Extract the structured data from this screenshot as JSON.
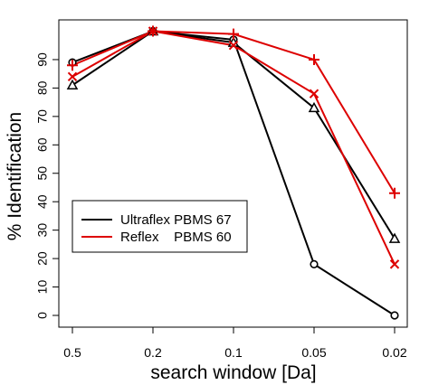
{
  "chart_data": {
    "type": "line",
    "title": "",
    "xlabel": "search window [Da]",
    "ylabel": "% Identification",
    "categories": [
      "0.5",
      "0.2",
      "0.1",
      "0.05",
      "0.02"
    ],
    "yticks": [
      0,
      10,
      20,
      30,
      40,
      50,
      60,
      70,
      80,
      90
    ],
    "ylim": [
      0,
      100
    ],
    "grid": false,
    "legend_position": "center-left",
    "legend": [
      {
        "label": "Ultraflex PBMS 67",
        "color": "#000000"
      },
      {
        "label": "Reflex    PBMS 60",
        "color": "#dd0000"
      }
    ],
    "series": [
      {
        "color": "#000000",
        "marker": "circle",
        "values": [
          89,
          100,
          97,
          18,
          0
        ]
      },
      {
        "color": "#000000",
        "marker": "triangle",
        "values": [
          81,
          100,
          96,
          73,
          27
        ]
      },
      {
        "color": "#dd0000",
        "marker": "cross",
        "values": [
          84,
          100,
          95,
          78,
          18
        ]
      },
      {
        "color": "#dd0000",
        "marker": "plus",
        "values": [
          88,
          100,
          99,
          90,
          43
        ]
      }
    ]
  }
}
